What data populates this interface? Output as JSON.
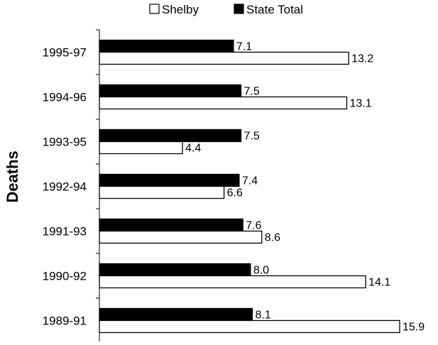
{
  "chart_data": {
    "type": "bar",
    "orientation": "horizontal",
    "ylabel": "Deaths",
    "categories": [
      "1995-97",
      "1994-96",
      "1993-95",
      "1992-94",
      "1991-93",
      "1990-92",
      "1989-91"
    ],
    "series": [
      {
        "name": "State Total",
        "color": "#000000",
        "values": [
          7.1,
          7.5,
          7.5,
          7.4,
          7.6,
          8.0,
          8.1
        ],
        "labels": [
          "7.1",
          "7.5",
          "7.5",
          "7.4",
          "7.6",
          "8.0",
          "8.1"
        ]
      },
      {
        "name": "Shelby",
        "color": "#ffffff",
        "values": [
          13.2,
          13.1,
          4.4,
          6.6,
          8.6,
          14.1,
          15.9
        ],
        "labels": [
          "13.2",
          "13.1",
          "4.4",
          "6.6",
          "8.6",
          "14.1",
          "15.9"
        ]
      }
    ],
    "legend_order": [
      "Shelby",
      "State Total"
    ],
    "xlim": [
      0,
      16.5
    ],
    "legend_position": "top-center",
    "grid": false
  }
}
